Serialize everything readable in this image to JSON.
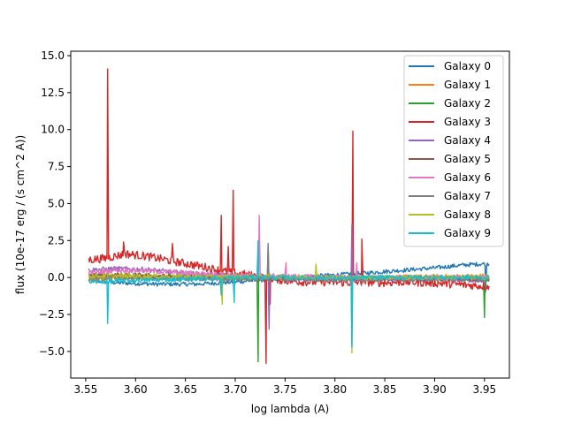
{
  "chart_data": {
    "type": "line",
    "title": "",
    "xlabel": "log lambda (A)",
    "ylabel": "flux (10e-17 erg / (s cm^2 A))",
    "xlim": [
      3.535,
      3.975
    ],
    "ylim": [
      -6.8,
      15.3
    ],
    "x_ticks": [
      3.55,
      3.6,
      3.65,
      3.7,
      3.75,
      3.8,
      3.85,
      3.9,
      3.95
    ],
    "x_tick_labels": [
      "3.55",
      "3.60",
      "3.65",
      "3.70",
      "3.75",
      "3.80",
      "3.85",
      "3.90",
      "3.95"
    ],
    "y_ticks": [
      -5.0,
      -2.5,
      0.0,
      2.5,
      5.0,
      7.5,
      10.0,
      12.5,
      15.0
    ],
    "y_tick_labels": [
      "−5.0",
      "−2.5",
      "0.0",
      "2.5",
      "5.0",
      "7.5",
      "10.0",
      "12.5",
      "15.0"
    ],
    "grid": false,
    "legend_position": "top-right",
    "series": [
      {
        "name": "Galaxy 0",
        "color": "#1f77b4",
        "points": [
          [
            3.553,
            -0.2
          ],
          [
            3.58,
            -0.35
          ],
          [
            3.62,
            -0.45
          ],
          [
            3.66,
            -0.45
          ],
          [
            3.7,
            -0.3
          ],
          [
            3.74,
            -0.1
          ],
          [
            3.78,
            0.1
          ],
          [
            3.82,
            0.25
          ],
          [
            3.86,
            0.45
          ],
          [
            3.9,
            0.65
          ],
          [
            3.93,
            0.85
          ],
          [
            3.955,
            0.95
          ]
        ],
        "features": [
          [
            3.817,
            -1.5
          ],
          [
            3.951,
            -1.0
          ]
        ]
      },
      {
        "name": "Galaxy 1",
        "color": "#ff7f0e",
        "points": [
          [
            3.553,
            -0.1
          ],
          [
            3.6,
            0.0
          ],
          [
            3.65,
            -0.05
          ],
          [
            3.7,
            0.0
          ],
          [
            3.75,
            0.0
          ],
          [
            3.8,
            0.0
          ],
          [
            3.85,
            0.0
          ],
          [
            3.9,
            0.05
          ],
          [
            3.955,
            0.1
          ]
        ],
        "features": []
      },
      {
        "name": "Galaxy 2",
        "color": "#2ca02c",
        "points": [
          [
            3.553,
            0.1
          ],
          [
            3.6,
            0.05
          ],
          [
            3.65,
            0.0
          ],
          [
            3.7,
            0.0
          ],
          [
            3.75,
            0.0
          ],
          [
            3.8,
            -0.05
          ],
          [
            3.85,
            0.0
          ],
          [
            3.9,
            0.0
          ],
          [
            3.955,
            -0.2
          ]
        ],
        "features": [
          [
            3.723,
            -5.7
          ],
          [
            3.95,
            -2.7
          ]
        ]
      },
      {
        "name": "Galaxy 3",
        "color": "#d62728",
        "points": [
          [
            3.553,
            1.2
          ],
          [
            3.57,
            1.3
          ],
          [
            3.59,
            1.6
          ],
          [
            3.61,
            1.45
          ],
          [
            3.63,
            1.2
          ],
          [
            3.65,
            0.95
          ],
          [
            3.67,
            0.7
          ],
          [
            3.69,
            0.4
          ],
          [
            3.71,
            0.2
          ],
          [
            3.73,
            0.0
          ],
          [
            3.75,
            -0.2
          ],
          [
            3.77,
            -0.3
          ],
          [
            3.79,
            -0.3
          ],
          [
            3.81,
            -0.35
          ],
          [
            3.83,
            -0.3
          ],
          [
            3.85,
            -0.35
          ],
          [
            3.87,
            -0.3
          ],
          [
            3.89,
            -0.35
          ],
          [
            3.91,
            -0.4
          ],
          [
            3.93,
            -0.5
          ],
          [
            3.955,
            -0.6
          ]
        ],
        "features": [
          [
            3.572,
            14.1
          ],
          [
            3.588,
            2.4
          ],
          [
            3.637,
            2.3
          ],
          [
            3.686,
            4.2
          ],
          [
            3.693,
            2.1
          ],
          [
            3.698,
            5.9
          ],
          [
            3.731,
            -5.8
          ],
          [
            3.735,
            -1.8
          ],
          [
            3.818,
            9.9
          ],
          [
            3.827,
            2.6
          ],
          [
            3.955,
            -2.6
          ]
        ]
      },
      {
        "name": "Galaxy 4",
        "color": "#9467bd",
        "points": [
          [
            3.553,
            0.5
          ],
          [
            3.58,
            0.6
          ],
          [
            3.61,
            0.55
          ],
          [
            3.64,
            0.35
          ],
          [
            3.67,
            0.2
          ],
          [
            3.7,
            0.1
          ],
          [
            3.73,
            0.0
          ],
          [
            3.76,
            -0.1
          ],
          [
            3.8,
            -0.1
          ],
          [
            3.84,
            -0.1
          ],
          [
            3.88,
            -0.15
          ],
          [
            3.92,
            -0.15
          ],
          [
            3.955,
            -0.2
          ]
        ],
        "features": [
          [
            3.734,
            -3.5
          ],
          [
            3.817,
            3.6
          ]
        ]
      },
      {
        "name": "Galaxy 5",
        "color": "#8c564b",
        "points": [
          [
            3.553,
            0.2
          ],
          [
            3.6,
            0.15
          ],
          [
            3.65,
            0.05
          ],
          [
            3.7,
            0.0
          ],
          [
            3.75,
            -0.05
          ],
          [
            3.8,
            -0.05
          ],
          [
            3.85,
            -0.1
          ],
          [
            3.9,
            -0.1
          ],
          [
            3.955,
            -0.1
          ]
        ],
        "features": [
          [
            3.733,
            2.1
          ]
        ]
      },
      {
        "name": "Galaxy 6",
        "color": "#e377c2",
        "points": [
          [
            3.553,
            0.3
          ],
          [
            3.58,
            0.5
          ],
          [
            3.61,
            0.45
          ],
          [
            3.64,
            0.35
          ],
          [
            3.67,
            0.25
          ],
          [
            3.7,
            0.15
          ],
          [
            3.74,
            0.1
          ],
          [
            3.78,
            0.05
          ],
          [
            3.82,
            0.0
          ],
          [
            3.86,
            0.0
          ],
          [
            3.9,
            0.0
          ],
          [
            3.955,
            0.0
          ]
        ],
        "features": [
          [
            3.724,
            4.2
          ],
          [
            3.751,
            1.0
          ],
          [
            3.822,
            1.0
          ]
        ]
      },
      {
        "name": "Galaxy 7",
        "color": "#7f7f7f",
        "points": [
          [
            3.553,
            0.0
          ],
          [
            3.6,
            -0.05
          ],
          [
            3.65,
            -0.1
          ],
          [
            3.7,
            -0.1
          ],
          [
            3.75,
            -0.1
          ],
          [
            3.8,
            -0.15
          ],
          [
            3.85,
            -0.1
          ],
          [
            3.9,
            -0.1
          ],
          [
            3.955,
            -0.1
          ]
        ],
        "features": [
          [
            3.733,
            2.3
          ]
        ]
      },
      {
        "name": "Galaxy 8",
        "color": "#bcbd22",
        "points": [
          [
            3.553,
            0.1
          ],
          [
            3.6,
            0.1
          ],
          [
            3.65,
            0.05
          ],
          [
            3.7,
            0.05
          ],
          [
            3.75,
            0.05
          ],
          [
            3.8,
            0.0
          ],
          [
            3.85,
            0.0
          ],
          [
            3.9,
            0.0
          ],
          [
            3.955,
            0.0
          ]
        ],
        "features": [
          [
            3.687,
            -1.8
          ],
          [
            3.781,
            0.9
          ],
          [
            3.817,
            -5.1
          ]
        ]
      },
      {
        "name": "Galaxy 9",
        "color": "#17becf",
        "points": [
          [
            3.553,
            -0.3
          ],
          [
            3.6,
            -0.2
          ],
          [
            3.65,
            -0.1
          ],
          [
            3.7,
            0.0
          ],
          [
            3.75,
            0.0
          ],
          [
            3.8,
            -0.05
          ],
          [
            3.85,
            0.0
          ],
          [
            3.9,
            0.0
          ],
          [
            3.955,
            0.0
          ]
        ],
        "features": [
          [
            3.572,
            -3.1
          ],
          [
            3.686,
            -1.2
          ],
          [
            3.699,
            -1.7
          ],
          [
            3.723,
            2.5
          ],
          [
            3.817,
            -4.7
          ]
        ]
      }
    ]
  }
}
